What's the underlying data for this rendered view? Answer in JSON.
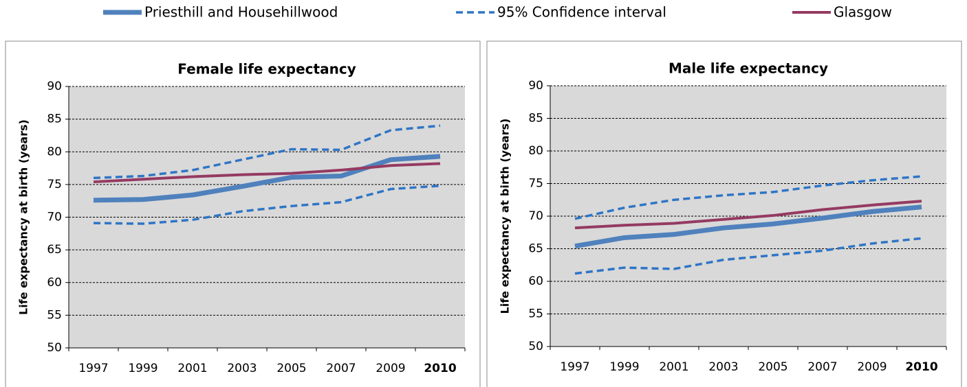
{
  "chart_data": [
    {
      "type": "line",
      "title": "Female life expectancy",
      "y_label": "Life expectancy at birth (years)",
      "categories": [
        "1997",
        "1999",
        "2001",
        "2003",
        "2005",
        "2007",
        "2009",
        "2010"
      ],
      "series": [
        {
          "name": "Priesthill and Househillwood",
          "color": "#4f81bd",
          "line_style": "solid",
          "values": [
            72.6,
            72.7,
            73.4,
            74.7,
            76.1,
            76.3,
            78.8,
            79.3
          ]
        },
        {
          "name": "95% Confidence interval",
          "color": "#2e75c6",
          "line_style": "dashed",
          "values": [
            76.0,
            76.3,
            77.2,
            78.8,
            80.4,
            80.3,
            83.3,
            84.0
          ]
        },
        {
          "name": "95% Confidence interval",
          "color": "#2e75c6",
          "line_style": "dashed",
          "values": [
            69.1,
            69.0,
            69.6,
            70.9,
            71.7,
            72.3,
            74.3,
            74.8
          ]
        },
        {
          "name": "Glasgow",
          "color": "#953a62",
          "line_style": "solid",
          "values": [
            75.4,
            75.8,
            76.2,
            76.5,
            76.7,
            77.2,
            77.9,
            78.2
          ]
        }
      ],
      "ylim": [
        50,
        90
      ],
      "yticks": [
        50,
        55,
        60,
        65,
        70,
        75,
        80,
        85,
        90
      ],
      "grid": true
    },
    {
      "type": "line",
      "title": "Male life expectancy",
      "y_label": "Life expectancy at birth (years)",
      "categories": [
        "1997",
        "1999",
        "2001",
        "2003",
        "2005",
        "2007",
        "2009",
        "2010"
      ],
      "series": [
        {
          "name": "Priesthill and Househillwood",
          "color": "#4f81bd",
          "line_style": "solid",
          "values": [
            65.4,
            66.7,
            67.2,
            68.2,
            68.8,
            69.7,
            70.7,
            71.4
          ]
        },
        {
          "name": "95% Confidence interval",
          "color": "#2e75c6",
          "line_style": "dashed",
          "values": [
            69.6,
            71.3,
            72.5,
            73.2,
            73.7,
            74.7,
            75.5,
            76.1
          ]
        },
        {
          "name": "95% Confidence interval",
          "color": "#2e75c6",
          "line_style": "dashed",
          "values": [
            61.2,
            62.1,
            61.9,
            63.3,
            64.0,
            64.7,
            65.8,
            66.6
          ]
        },
        {
          "name": "Glasgow",
          "color": "#953a62",
          "line_style": "solid",
          "values": [
            68.2,
            68.6,
            68.9,
            69.5,
            70.1,
            71.0,
            71.7,
            72.3
          ]
        }
      ],
      "ylim": [
        50,
        90
      ],
      "yticks": [
        50,
        55,
        60,
        65,
        70,
        75,
        80,
        85,
        90
      ],
      "grid": true
    }
  ]
}
